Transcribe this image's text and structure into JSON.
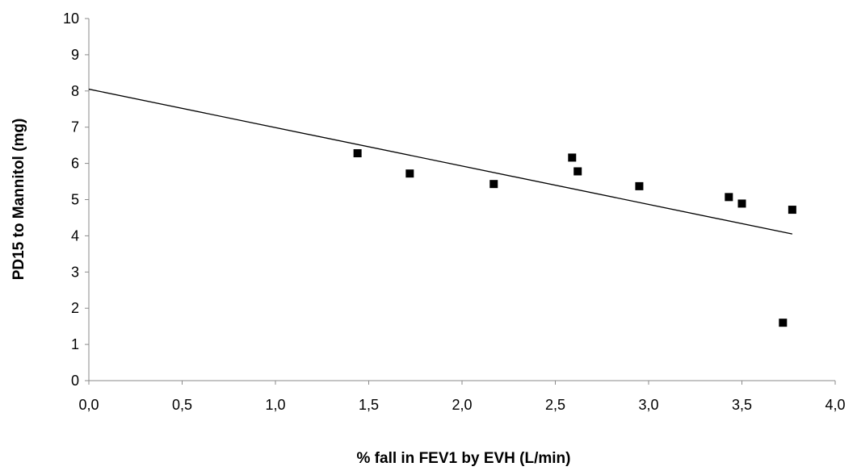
{
  "chart_data": {
    "type": "scatter",
    "title": "",
    "xlabel": "% fall in FEV1 by EVH (L/min)",
    "ylabel": "PD15 to Mannitol (mg)",
    "xlim": [
      0,
      4
    ],
    "ylim": [
      0,
      10
    ],
    "x_ticks": [
      "0,0",
      "0,5",
      "1,0",
      "1,5",
      "2,0",
      "2,5",
      "3,0",
      "3,5",
      "4,0"
    ],
    "y_ticks": [
      "0",
      "1",
      "2",
      "3",
      "4",
      "5",
      "6",
      "7",
      "8",
      "9",
      "10"
    ],
    "grid": false,
    "legend": "none",
    "marker": "square",
    "marker_color": "#000000",
    "points": [
      {
        "x": 1.44,
        "y": 6.28
      },
      {
        "x": 1.72,
        "y": 5.72
      },
      {
        "x": 2.17,
        "y": 5.43
      },
      {
        "x": 2.59,
        "y": 6.16
      },
      {
        "x": 2.62,
        "y": 5.78
      },
      {
        "x": 2.95,
        "y": 5.37
      },
      {
        "x": 3.43,
        "y": 5.07
      },
      {
        "x": 3.5,
        "y": 4.89
      },
      {
        "x": 3.72,
        "y": 1.6
      },
      {
        "x": 3.77,
        "y": 4.72
      }
    ],
    "trendline": {
      "x_start": 0.0,
      "y_start": 8.05,
      "x_end": 3.77,
      "y_end": 4.05
    }
  }
}
